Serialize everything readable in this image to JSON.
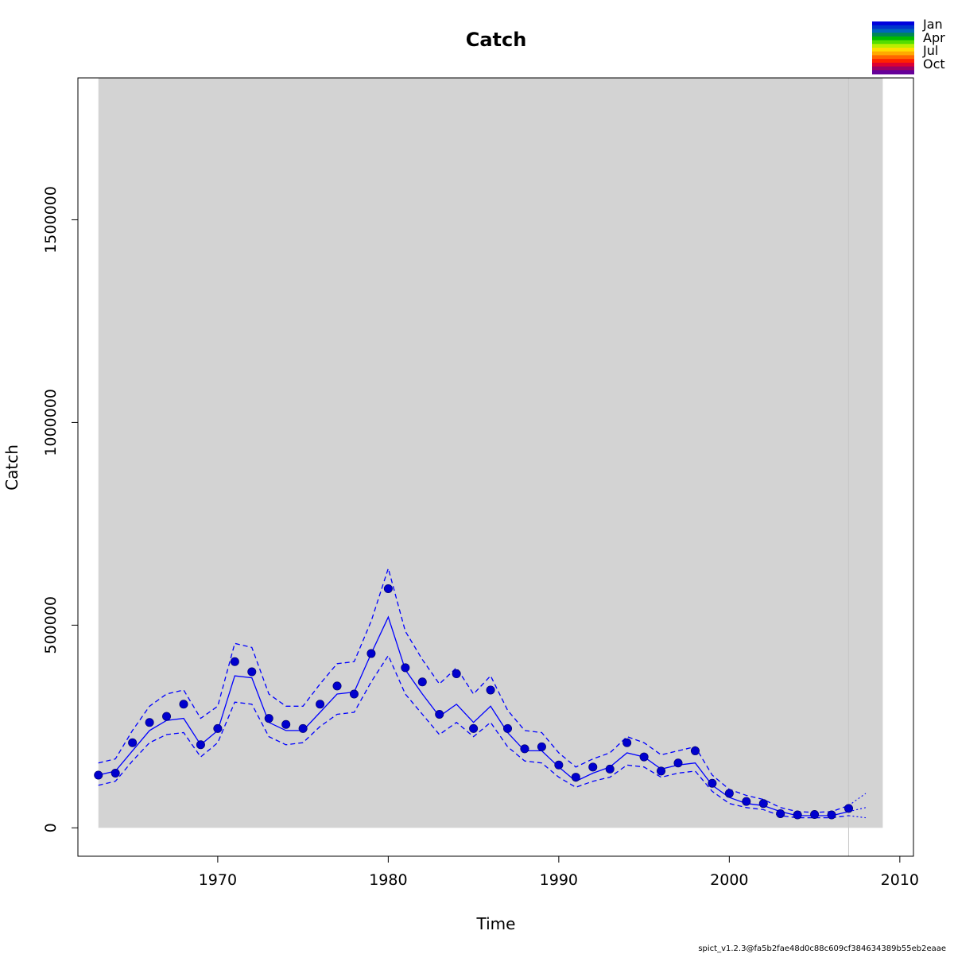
{
  "chart_data": {
    "type": "line",
    "title": "Catch",
    "xlabel": "Time",
    "ylabel": "Catch",
    "xlim": [
      1961.8,
      2010.8
    ],
    "ylim": [
      -70000,
      1850000
    ],
    "x_ticks": [
      1970,
      1980,
      1990,
      2000,
      2010
    ],
    "y_ticks": [
      0,
      500000,
      1000000,
      1500000
    ],
    "shaded_region": [
      1963,
      2009
    ],
    "vertical_line": 2007,
    "colors": {
      "series": "#0000ff",
      "points": "#0000cd",
      "shade": "#d3d3d3",
      "vline": "#c8c8c8"
    },
    "legend": {
      "placement": "top-right",
      "labels": [
        "Jan",
        "Apr",
        "Jul",
        "Oct"
      ],
      "colors": [
        "#0000dd",
        "#0033cc",
        "#0066bb",
        "#008855",
        "#00bb00",
        "#55dd00",
        "#bbee00",
        "#ffdd00",
        "#ffaa00",
        "#ff6600",
        "#ff2200",
        "#dd0033",
        "#990066",
        "#660099"
      ]
    },
    "footer": "spict_v1.2.3@fa5b2fae48d0c88c609cf384634389b55eb2eaae",
    "observed": {
      "x": [
        1963,
        1964,
        1965,
        1966,
        1967,
        1968,
        1969,
        1970,
        1971,
        1972,
        1973,
        1974,
        1975,
        1976,
        1977,
        1978,
        1979,
        1980,
        1981,
        1982,
        1983,
        1984,
        1985,
        1986,
        1987,
        1988,
        1989,
        1990,
        1991,
        1992,
        1993,
        1994,
        1995,
        1996,
        1997,
        1998,
        1999,
        2000,
        2001,
        2002,
        2003,
        2004,
        2005,
        2006,
        2007
      ],
      "y": [
        130000,
        135000,
        210000,
        260000,
        275000,
        305000,
        205000,
        245000,
        410000,
        385000,
        270000,
        255000,
        245000,
        305000,
        350000,
        330000,
        430000,
        590000,
        395000,
        360000,
        280000,
        380000,
        245000,
        340000,
        245000,
        195000,
        200000,
        155000,
        125000,
        150000,
        145000,
        210000,
        175000,
        140000,
        160000,
        190000,
        110000,
        85000,
        65000,
        60000,
        35000,
        32000,
        33000,
        32000,
        48000
      ]
    },
    "series": [
      {
        "x": [
          1963,
          1964,
          1965,
          1966,
          1967,
          1968,
          1969,
          1970,
          1971,
          1972,
          1973,
          1974,
          1975,
          1976,
          1977,
          1978,
          1979,
          1980,
          1981,
          1982,
          1983,
          1984,
          1985,
          1986,
          1987,
          1988,
          1989,
          1990,
          1991,
          1992,
          1993,
          1994,
          1995,
          1996,
          1997,
          1998,
          1999,
          2000,
          2001,
          2002,
          2003,
          2004,
          2005,
          2006,
          2007,
          2008
        ],
        "y": [
          130000,
          140000,
          190000,
          240000,
          265000,
          270000,
          205000,
          240000,
          375000,
          370000,
          260000,
          240000,
          240000,
          285000,
          330000,
          335000,
          430000,
          520000,
          390000,
          330000,
          275000,
          305000,
          260000,
          300000,
          235000,
          190000,
          190000,
          150000,
          115000,
          135000,
          150000,
          185000,
          175000,
          145000,
          155000,
          160000,
          105000,
          75000,
          60000,
          55000,
          40000,
          30000,
          30000,
          30000,
          40000,
          50000
        ]
      },
      {
        "x": [
          1963,
          1964,
          1965,
          1966,
          1967,
          1968,
          1969,
          1970,
          1971,
          1972,
          1973,
          1974,
          1975,
          1976,
          1977,
          1978,
          1979,
          1980,
          1981,
          1982,
          1983,
          1984,
          1985,
          1986,
          1987,
          1988,
          1989,
          1990,
          1991,
          1992,
          1993,
          1994,
          1995,
          1996,
          1997,
          1998,
          1999,
          2000,
          2001,
          2002,
          2003,
          2004,
          2005,
          2006,
          2007,
          2008
        ],
        "y": [
          160000,
          170000,
          240000,
          300000,
          330000,
          340000,
          270000,
          300000,
          455000,
          445000,
          330000,
          300000,
          300000,
          355000,
          405000,
          410000,
          510000,
          640000,
          485000,
          415000,
          355000,
          395000,
          330000,
          375000,
          290000,
          240000,
          235000,
          185000,
          150000,
          170000,
          185000,
          225000,
          210000,
          180000,
          190000,
          200000,
          130000,
          95000,
          80000,
          70000,
          50000,
          40000,
          38000,
          40000,
          55000,
          85000
        ]
      },
      {
        "x": [
          1963,
          1964,
          1965,
          1966,
          1967,
          1968,
          1969,
          1970,
          1971,
          1972,
          1973,
          1974,
          1975,
          1976,
          1977,
          1978,
          1979,
          1980,
          1981,
          1982,
          1983,
          1984,
          1985,
          1986,
          1987,
          1988,
          1989,
          1990,
          1991,
          1992,
          1993,
          1994,
          1995,
          1996,
          1997,
          1998,
          1999,
          2000,
          2001,
          2002,
          2003,
          2004,
          2005,
          2006,
          2007,
          2008
        ],
        "y": [
          105000,
          115000,
          165000,
          210000,
          230000,
          235000,
          175000,
          210000,
          310000,
          305000,
          225000,
          205000,
          210000,
          250000,
          280000,
          285000,
          360000,
          425000,
          330000,
          280000,
          230000,
          260000,
          225000,
          260000,
          200000,
          165000,
          160000,
          125000,
          100000,
          115000,
          125000,
          155000,
          150000,
          125000,
          135000,
          140000,
          90000,
          60000,
          50000,
          45000,
          30000,
          25000,
          25000,
          25000,
          30000,
          25000
        ]
      }
    ]
  }
}
